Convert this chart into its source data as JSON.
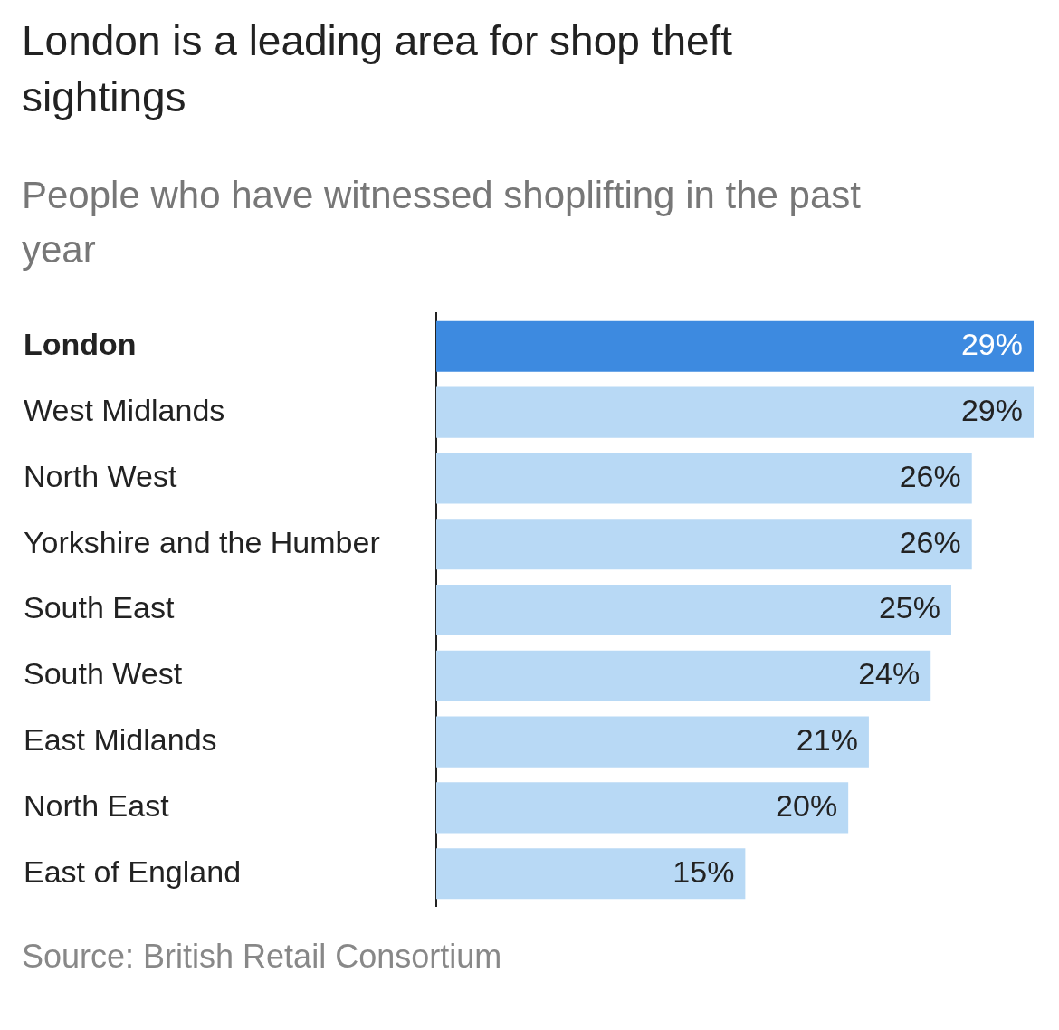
{
  "chart_data": {
    "type": "bar",
    "orientation": "horizontal",
    "title": "London is a leading area for shop theft sightings",
    "subtitle": "People who have witnessed shoplifting in the past year",
    "categories": [
      "London",
      "West Midlands",
      "North West",
      "Yorkshire and the Humber",
      "South East",
      "South West",
      "East Midlands",
      "North East",
      "East of England"
    ],
    "values": [
      29,
      29,
      26,
      26,
      25,
      24,
      21,
      20,
      15
    ],
    "colors": [
      "#3d8ae0",
      "#b8d9f5",
      "#b8d9f5",
      "#b8d9f5",
      "#b8d9f5",
      "#b8d9f5",
      "#b8d9f5",
      "#b8d9f5",
      "#b8d9f5"
    ],
    "value_labels": [
      "29%",
      "29%",
      "26%",
      "26%",
      "25%",
      "24%",
      "21%",
      "20%",
      "15%"
    ],
    "legend": false,
    "annotations": [
      "Source: British Retail Consortium"
    ]
  }
}
